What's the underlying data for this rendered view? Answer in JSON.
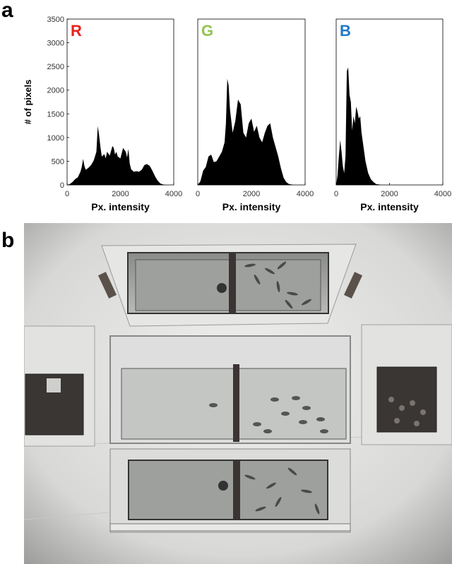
{
  "figure": {
    "panel_a_label": "a",
    "panel_b_label": "b"
  },
  "chart_data": [
    {
      "type": "area",
      "panel_label": "R",
      "label_color": "#e8221b",
      "fill_color": "#000000",
      "xlabel": "Px. intensity",
      "ylabel": "# of pixels",
      "xlim": [
        0,
        4000
      ],
      "ylim": [
        0,
        3500
      ],
      "xticks": [
        "0",
        "2000",
        "4000"
      ],
      "yticks": [
        "0",
        "500",
        "1000",
        "1500",
        "2000",
        "2500",
        "3000",
        "3500"
      ],
      "x": [
        0,
        100,
        200,
        300,
        400,
        500,
        550,
        600,
        650,
        700,
        800,
        900,
        1000,
        1100,
        1150,
        1200,
        1250,
        1300,
        1400,
        1450,
        1500,
        1600,
        1700,
        1750,
        1800,
        1850,
        1900,
        2000,
        2100,
        2200,
        2250,
        2300,
        2350,
        2400,
        2500,
        2600,
        2700,
        2800,
        2900,
        3000,
        3100,
        3200,
        3300,
        3400,
        3500,
        3600,
        3700,
        3800,
        4000
      ],
      "y": [
        0,
        20,
        60,
        120,
        160,
        280,
        380,
        550,
        400,
        320,
        360,
        420,
        520,
        700,
        1240,
        1050,
        800,
        600,
        650,
        560,
        700,
        620,
        820,
        780,
        640,
        700,
        600,
        560,
        780,
        700,
        580,
        760,
        450,
        330,
        280,
        290,
        280,
        320,
        420,
        440,
        400,
        300,
        180,
        90,
        30,
        10,
        0,
        0,
        0
      ]
    },
    {
      "type": "area",
      "panel_label": "G",
      "label_color": "#92c44e",
      "fill_color": "#000000",
      "xlabel": "Px. intensity",
      "xlim": [
        0,
        4000
      ],
      "ylim": [
        0,
        3500
      ],
      "xticks": [
        "0",
        "2000",
        "4000"
      ],
      "x": [
        0,
        100,
        200,
        300,
        400,
        500,
        600,
        700,
        800,
        900,
        1000,
        1050,
        1100,
        1150,
        1200,
        1300,
        1400,
        1500,
        1600,
        1700,
        1800,
        1900,
        2000,
        2100,
        2200,
        2300,
        2400,
        2500,
        2600,
        2700,
        2800,
        2900,
        3000,
        3100,
        3200,
        3300,
        3400,
        3600,
        4000
      ],
      "y": [
        0,
        80,
        300,
        380,
        600,
        640,
        480,
        500,
        600,
        700,
        900,
        1300,
        2240,
        2100,
        1600,
        1100,
        1350,
        1800,
        1700,
        1100,
        1000,
        1300,
        1400,
        1120,
        1250,
        1000,
        900,
        1100,
        1250,
        1300,
        1000,
        800,
        600,
        350,
        150,
        60,
        20,
        0,
        0
      ]
    },
    {
      "type": "area",
      "panel_label": "B",
      "label_color": "#1f78c8",
      "fill_color": "#000000",
      "xlabel": "Px. intensity",
      "xlim": [
        0,
        4000
      ],
      "ylim": [
        0,
        3500
      ],
      "xticks": [
        "0",
        "2000",
        "4000"
      ],
      "x": [
        0,
        50,
        100,
        150,
        200,
        250,
        300,
        350,
        400,
        450,
        500,
        550,
        600,
        650,
        700,
        750,
        800,
        850,
        900,
        950,
        1000,
        1100,
        1200,
        1300,
        1400,
        1500,
        1600,
        1700,
        4000
      ],
      "y": [
        0,
        200,
        600,
        950,
        700,
        400,
        250,
        600,
        2400,
        2480,
        1900,
        1750,
        1150,
        1450,
        1300,
        1650,
        1550,
        1400,
        1450,
        1100,
        900,
        500,
        250,
        120,
        60,
        20,
        10,
        0,
        0
      ]
    }
  ],
  "photo": {
    "icon_name": "fish-tank-arena-photo"
  }
}
